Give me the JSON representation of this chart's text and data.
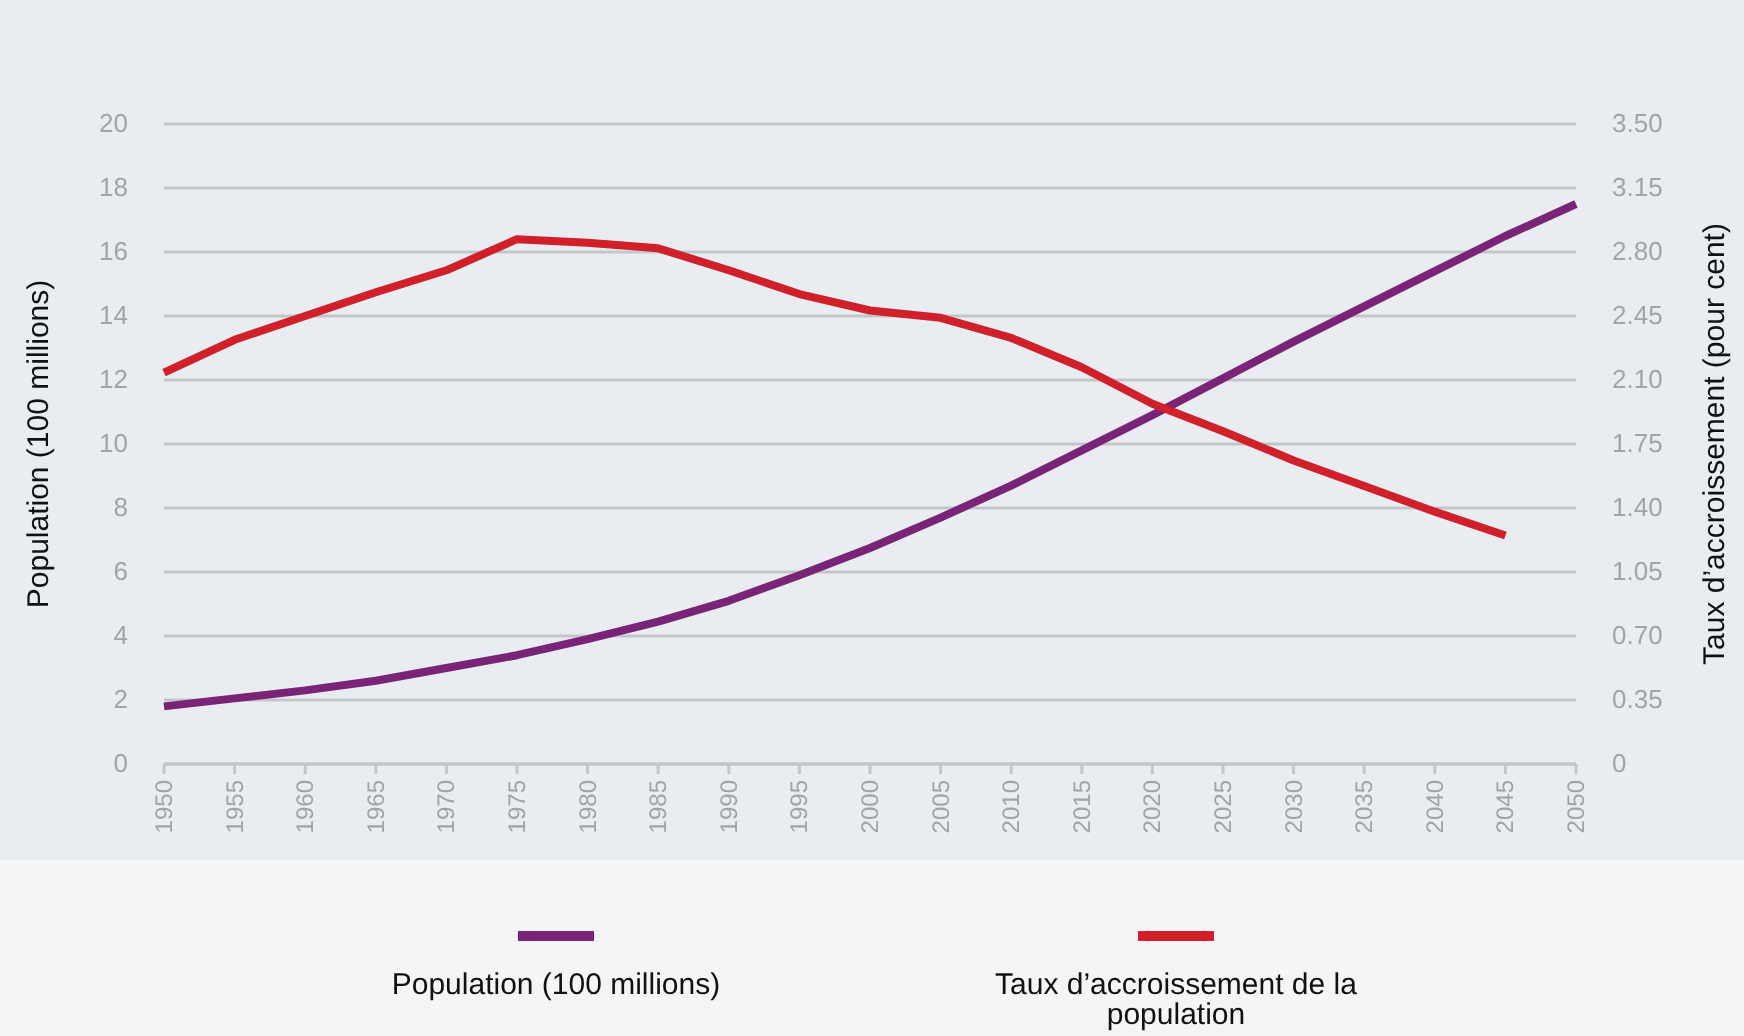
{
  "chart_data": {
    "type": "line",
    "ylabel": "Population (100 millions)",
    "y2label": "Taux d’accroissement (pour cent)",
    "x": [
      1950,
      1955,
      1960,
      1965,
      1970,
      1975,
      1980,
      1985,
      1990,
      1995,
      2000,
      2005,
      2010,
      2015,
      2020,
      2025,
      2030,
      2035,
      2040,
      2045,
      2050
    ],
    "xlim": [
      1950,
      2050
    ],
    "xticks": [
      1950,
      1955,
      1960,
      1965,
      1970,
      1975,
      1980,
      1985,
      1990,
      1995,
      2000,
      2005,
      2010,
      2015,
      2020,
      2025,
      2030,
      2035,
      2040,
      2045,
      2050
    ],
    "ylim": [
      0,
      20
    ],
    "yticks": [
      0,
      2,
      4,
      6,
      8,
      10,
      12,
      14,
      16,
      18,
      20
    ],
    "y2lim": [
      0,
      3.5
    ],
    "y2ticks": [
      0,
      {
        "value": 0.35,
        "label": "0.35"
      },
      {
        "value": 0.7,
        "label": "0.70"
      },
      {
        "value": 1.05,
        "label": "1.05"
      },
      {
        "value": 1.4,
        "label": "1.40"
      },
      {
        "value": 1.75,
        "label": "1.75"
      },
      {
        "value": 2.1,
        "label": "2.10"
      },
      {
        "value": 2.45,
        "label": "2.45"
      },
      {
        "value": 2.8,
        "label": "2.80"
      },
      {
        "value": 3.15,
        "label": "3.15"
      },
      {
        "value": 3.5,
        "label": "3.50"
      }
    ],
    "grid": "y",
    "legend": "bottom",
    "line_style": "solid",
    "series": [
      {
        "name": "Population (100 millions)",
        "color": "#7a2478",
        "values": [
          1.8,
          2.05,
          2.3,
          2.6,
          3.0,
          3.4,
          3.9,
          4.45,
          5.1,
          5.9,
          6.75,
          7.7,
          8.7,
          9.8,
          10.9,
          12.05,
          13.2,
          14.3,
          15.4,
          16.5,
          17.5
        ]
      },
      {
        "name": "Taux d’accroissement de la population",
        "color": "#d0202a",
        "axis": "y2",
        "values": [
          2.14,
          2.32,
          2.45,
          2.58,
          2.7,
          2.87,
          2.85,
          2.82,
          2.7,
          2.57,
          2.48,
          2.44,
          2.33,
          2.17,
          1.97,
          1.82,
          1.66,
          1.52,
          1.38,
          1.25,
          null
        ]
      }
    ]
  }
}
